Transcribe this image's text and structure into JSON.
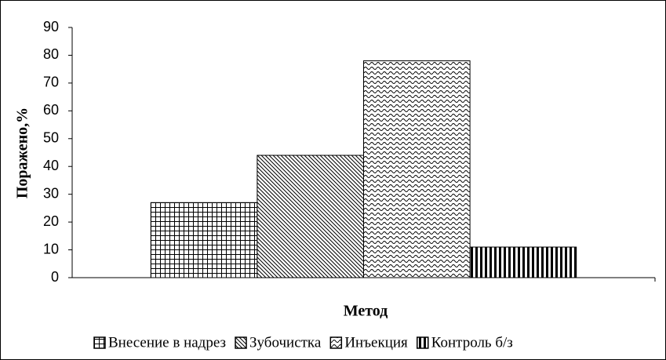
{
  "chart_data": {
    "type": "bar",
    "y_label": "Поражено,%",
    "x_label": "Метод",
    "categories": [
      null
    ],
    "series": [
      {
        "name": "Внесение в надрез",
        "color": "#000000",
        "pattern": "grid",
        "values": [
          27
        ]
      },
      {
        "name": "Зубочистка",
        "color": "#000000",
        "pattern": "diagonal",
        "values": [
          44
        ]
      },
      {
        "name": "Инъекция",
        "color": "#000000",
        "pattern": "wave",
        "values": [
          78
        ]
      },
      {
        "name": "Контроль б/з",
        "color": "#000000",
        "pattern": "vertical",
        "values": [
          11
        ]
      }
    ],
    "ylim": [
      0,
      90
    ],
    "yticks": [
      0,
      10,
      20,
      30,
      40,
      50,
      60,
      70,
      80,
      90
    ],
    "grid": false,
    "legend": "bottom"
  }
}
